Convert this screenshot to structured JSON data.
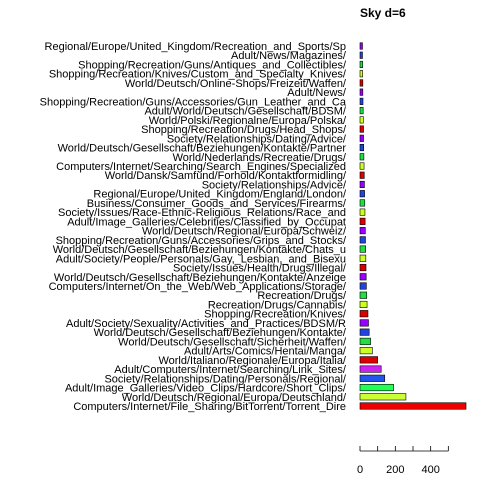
{
  "chart_data": {
    "type": "bar",
    "orientation": "horizontal",
    "title": "Sky d=6",
    "xlabel": "",
    "ylabel": "",
    "xlim": [
      0,
      600
    ],
    "xticks": [
      0,
      200,
      400
    ],
    "grid": false,
    "categories": [
      "Regional/Europe/United_Kingdom/Recreation_and_Sports/Sp",
      "Adult/News/Magazines/",
      "Shopping/Recreation/Guns/Antiques_and_Collectibles/",
      "Shopping/Recreation/Knives/Custom_and_Specialty_Knives/",
      "World/Deutsch/Online-Shops/Freizeit/Waffen/",
      "Adult/News/",
      "Shopping/Recreation/Guns/Accessories/Gun_Leather_and_Ca",
      "Adult/World/Deutsch/Gesellschaft/BDSM/",
      "World/Polski/Regionalne/Europa/Polska/",
      "Shopping/Recreation/Drugs/Head_Shops/",
      "Society/Relationships/Dating/Advice/",
      "World/Deutsch/Gesellschaft/Beziehungen/Kontakte/Partner",
      "World/Nederlands/Recreatie/Drugs/",
      "Computers/Internet/Searching/Search_Engines/Specialized",
      "World/Dansk/Samfund/Forhold/Kontaktformidling/",
      "Society/Relationships/Advice/",
      "Regional/Europe/United_Kingdom/England/London/",
      "Business/Consumer_Goods_and_Services/Firearms/",
      "Society/Issues/Race-Ethnic-Religious_Relations/Race_and",
      "Adult/Image_Galleries/Celebrities/Classified_by_Occupat",
      "World/Deutsch/Regional/Europa/Schweiz/",
      "Shopping/Recreation/Guns/Accessories/Grips_and_Stocks/",
      "World/Deutsch/Gesellschaft/Beziehungen/Kontakte/Chats_u",
      "Adult/Society/People/Personals/Gay,_Lesbian,_and_Bisexu",
      "Society/Issues/Health/Drugs/Illegal/",
      "World/Deutsch/Gesellschaft/Beziehungen/Kontakte/Anzeige",
      "Computers/Internet/On_the_Web/Web_Applications/Storage/",
      "Recreation/Drugs/",
      "Recreation/Drugs/Cannabis/",
      "Shopping/Recreation/Knives/",
      "Adult/Society/Sexuality/Activities_and_Practices/BDSM/R",
      "World/Deutsch/Gesellschaft/Beziehungen/Kontakte/",
      "World/Deutsch/Gesellschaft/Sicherheit/Waffen/",
      "Adult/Arts/Comics/Hentai/Manga/",
      "World/Italiano/Regionale/Europa/Italia/",
      "Adult/Computers/Internet/Searching/Link_Sites/",
      "Society/Relationships/Dating/Personals/Regional/",
      "Adult/Image_Galleries/Video_Clips/Hardcore/Short_Clips/",
      "World/Deutsch/Regional/Europa/Deutschland/",
      "Computers/Internet/File_Sharing/BitTorrent/Torrent_Dire"
    ],
    "values": [
      14,
      14,
      15,
      15,
      16,
      16,
      17,
      18,
      19,
      20,
      20,
      21,
      22,
      23,
      24,
      25,
      26,
      27,
      28,
      29,
      30,
      31,
      32,
      33,
      34,
      35,
      36,
      38,
      40,
      45,
      48,
      52,
      60,
      70,
      100,
      120,
      140,
      190,
      260,
      600
    ],
    "colors": [
      "#9900ff",
      "#2244dd",
      "#22dd44",
      "#ccff22",
      "#dd0000",
      "#9900ff",
      "#2244dd",
      "#22dd44",
      "#ccff22",
      "#dd0000",
      "#9900ff",
      "#2244dd",
      "#22dd44",
      "#ccff22",
      "#dd0000",
      "#9900ff",
      "#2244dd",
      "#22dd44",
      "#ccff22",
      "#dd0000",
      "#9900ff",
      "#2244dd",
      "#22dd44",
      "#ccff22",
      "#dd0000",
      "#9900ff",
      "#2244dd",
      "#22dd44",
      "#ccff22",
      "#dd0000",
      "#9900ff",
      "#2244dd",
      "#22dd44",
      "#ccff22",
      "#dd0000",
      "#cc22ee",
      "#2255ee",
      "#22ff55",
      "#ccff33",
      "#ee0000"
    ]
  }
}
